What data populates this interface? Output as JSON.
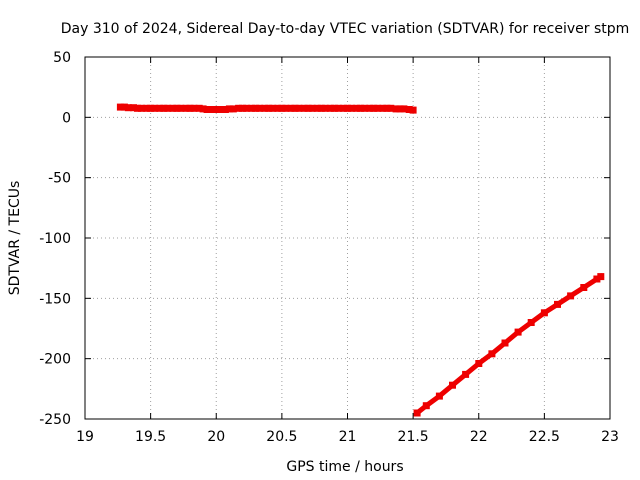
{
  "chart_data": {
    "type": "scatter",
    "title": "Day 310 of 2024, Sidereal Day-to-day VTEC variation (SDTVAR) for receiver stpm",
    "xlabel": "GPS time / hours",
    "ylabel": "SDTVAR / TECUs",
    "xlim": [
      19,
      23
    ],
    "ylim": [
      -250,
      50
    ],
    "xticks": [
      19,
      19.5,
      20,
      20.5,
      21,
      21.5,
      22,
      22.5,
      23
    ],
    "yticks": [
      50,
      0,
      -50,
      -100,
      -150,
      -200,
      -250
    ],
    "xtick_labels": [
      "19",
      "19.5",
      "20",
      "20.5",
      "21",
      "21.5",
      "22",
      "22.5",
      "23"
    ],
    "ytick_labels": [
      "50",
      "0",
      "-50",
      "-100",
      "-150",
      "-200",
      "-250"
    ],
    "grid": true,
    "grid_style": "dotted",
    "marker_color": "#ee0000",
    "marker": "square",
    "series": [
      {
        "x": [
          19.27,
          19.3,
          19.33,
          19.37,
          19.4,
          19.43,
          19.47,
          19.5,
          19.53,
          19.57,
          19.6,
          19.63,
          19.67,
          19.7,
          19.73,
          19.77,
          19.8,
          19.83,
          19.87,
          19.9,
          19.93,
          19.97,
          20.0,
          20.03,
          20.07,
          20.1,
          20.13,
          20.17,
          20.2,
          20.23,
          20.27,
          20.3,
          20.33,
          20.37,
          20.4,
          20.43,
          20.47,
          20.5,
          20.53,
          20.57,
          20.6,
          20.63,
          20.67,
          20.7,
          20.73,
          20.77,
          20.8,
          20.83,
          20.87,
          20.9,
          20.93,
          20.97,
          21.0,
          21.03,
          21.07,
          21.1,
          21.13,
          21.17,
          21.2,
          21.23,
          21.27,
          21.3,
          21.33,
          21.37,
          21.4,
          21.43,
          21.47,
          21.5
        ],
        "y": [
          8.5,
          8.5,
          8.0,
          8.0,
          7.5,
          7.5,
          7.5,
          7.5,
          7.5,
          7.5,
          7.5,
          7.5,
          7.5,
          7.5,
          7.5,
          7.5,
          7.5,
          7.5,
          7.5,
          7.0,
          6.5,
          6.5,
          6.5,
          6.5,
          6.5,
          7.0,
          7.0,
          7.5,
          7.5,
          7.5,
          7.5,
          7.5,
          7.5,
          7.5,
          7.5,
          7.5,
          7.5,
          7.5,
          7.5,
          7.5,
          7.5,
          7.5,
          7.5,
          7.5,
          7.5,
          7.5,
          7.5,
          7.5,
          7.5,
          7.5,
          7.5,
          7.5,
          7.5,
          7.5,
          7.5,
          7.5,
          7.5,
          7.5,
          7.5,
          7.5,
          7.5,
          7.5,
          7.5,
          7.0,
          7.0,
          7.0,
          6.5,
          6.0
        ]
      },
      {
        "x": [
          21.53,
          21.6,
          21.7,
          21.8,
          21.9,
          22.0,
          22.1,
          22.2,
          22.3,
          22.4,
          22.5,
          22.6,
          22.7,
          22.8,
          22.9,
          22.93
        ],
        "y": [
          -245,
          -239,
          -231,
          -222,
          -213,
          -204,
          -196,
          -187,
          -178,
          -170,
          -162,
          -155,
          -148,
          -141,
          -134,
          -132
        ]
      }
    ]
  }
}
